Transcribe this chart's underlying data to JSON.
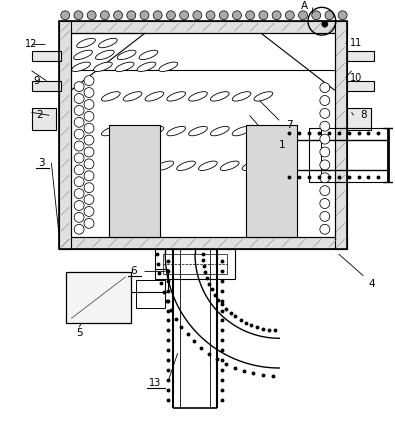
{
  "bg_color": "#ffffff",
  "lc": "#000000",
  "fig_w": 3.95,
  "fig_h": 4.43,
  "dpi": 100
}
